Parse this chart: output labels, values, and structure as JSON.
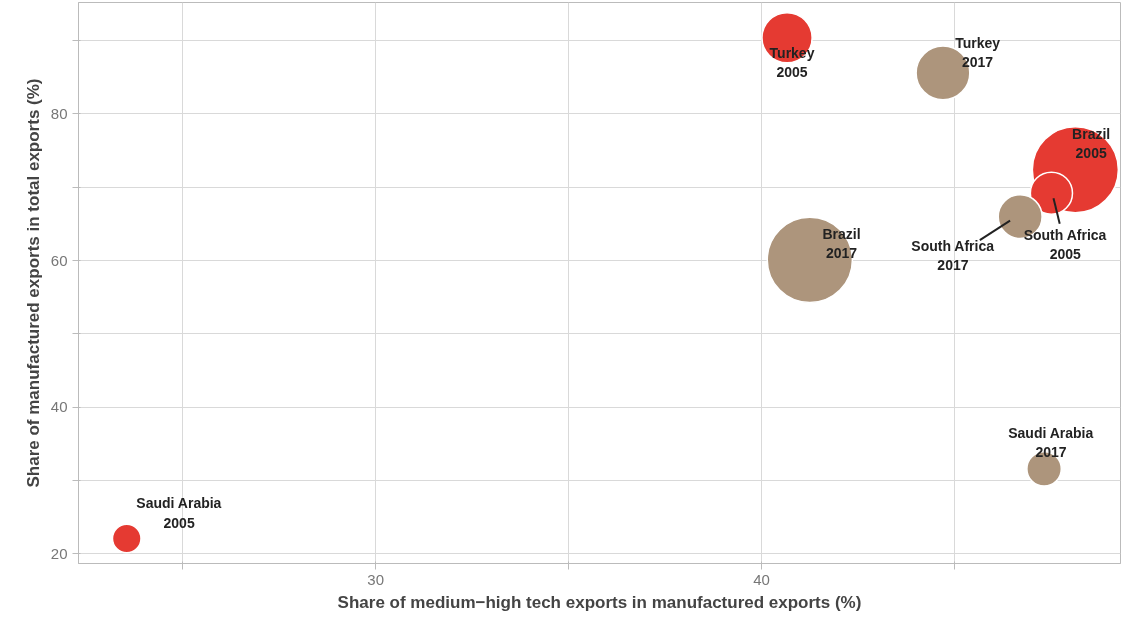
{
  "chart_data": {
    "type": "bubble",
    "xlabel": "Share of medium−high tech exports in manufactured exports (%)",
    "ylabel": "Share of manufactured exports in total exports (%)",
    "xlim": [
      22.3,
      49.3
    ],
    "ylim": [
      18.7,
      95.2
    ],
    "xticks": [
      {
        "value": 25,
        "label": null
      },
      30,
      {
        "value": 35,
        "label": null
      },
      40,
      {
        "value": 45,
        "label": null
      }
    ],
    "yticks": [
      20,
      {
        "value": 30,
        "label": null
      },
      40,
      {
        "value": 50,
        "label": null
      },
      60,
      {
        "value": 70,
        "label": null
      },
      80,
      {
        "value": 90,
        "label": null
      }
    ],
    "grid": true,
    "series": [
      {
        "color": "#e53a32",
        "x": [
          23.55,
          40.66,
          48.13,
          47.51
        ],
        "values": [
          22.1,
          90.4,
          72.4,
          69.2
        ],
        "sizes": [
          0.11,
          0.34,
          1,
          0.24
        ]
      },
      {
        "color": "#ad957c",
        "x": [
          44.7,
          41.25,
          46.7,
          47.32
        ],
        "values": [
          85.6,
          60.1,
          66.0,
          31.6
        ],
        "sizes": [
          0.39,
          0.98,
          0.26,
          0.16
        ]
      }
    ],
    "annotations": [
      {
        "text": "Saudi Arabia\n2005",
        "x": 23.55,
        "y": 22.1
      },
      {
        "text": "Turkey\n2005",
        "x": 40.66,
        "y": 90.4
      },
      {
        "text": "Brazil\n2005",
        "x": 48.13,
        "y": 72.4
      },
      {
        "text": "South Africa\n2005",
        "x": 47.51,
        "y": 69.2
      },
      {
        "text": "Turkey\n2017",
        "x": 44.7,
        "y": 85.6
      },
      {
        "text": "Brazil\n2017",
        "x": 41.25,
        "y": 60.1
      },
      {
        "text": "South Africa\n2017",
        "x": 46.7,
        "y": 66.0
      },
      {
        "text": "Saudi Arabia\n2017",
        "x": 47.32,
        "y": 31.6
      }
    ]
  }
}
